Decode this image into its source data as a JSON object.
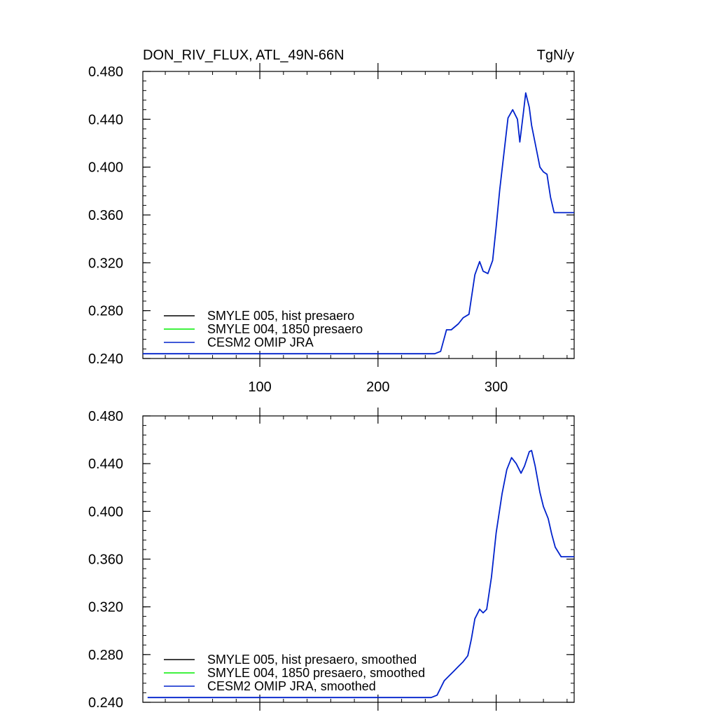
{
  "title_left": "DON_RIV_FLUX, ATL_49N-66N",
  "title_right": "TgN/y",
  "colors": {
    "hist": "#000000",
    "ctrl": "#00ee00",
    "omip": "#0022cc"
  },
  "chart_data": [
    {
      "type": "line",
      "panel": "top",
      "xlim": [
        1,
        366
      ],
      "ylim": [
        0.24,
        0.48
      ],
      "x_major_ticks": [
        100,
        200,
        300
      ],
      "x_tick_labels": [
        "100",
        "200",
        "300"
      ],
      "y_major_ticks": [
        0.24,
        0.28,
        0.32,
        0.36,
        0.4,
        0.44,
        0.48
      ],
      "y_tick_labels": [
        "0.240",
        "0.280",
        "0.320",
        "0.360",
        "0.400",
        "0.440",
        "0.480"
      ],
      "legend_position": "bottom-left",
      "series": [
        {
          "name": "SMYLE 005, hist presaero",
          "color": "#000000",
          "x": [],
          "y": []
        },
        {
          "name": "SMYLE 004, 1850 presaero",
          "color": "#00ee00",
          "x": [],
          "y": []
        },
        {
          "name": "CESM2 OMIP JRA",
          "color": "#0022cc",
          "x": [
            1,
            248,
            253,
            258,
            262,
            268,
            272,
            277,
            282,
            286,
            289,
            293,
            297,
            300,
            303,
            310,
            314,
            318,
            320,
            323,
            325,
            328,
            330,
            334,
            337,
            340,
            343,
            346,
            349,
            352,
            355,
            358,
            362,
            366
          ],
          "y": [
            0.244,
            0.244,
            0.246,
            0.264,
            0.264,
            0.269,
            0.274,
            0.277,
            0.31,
            0.321,
            0.313,
            0.311,
            0.322,
            0.35,
            0.381,
            0.441,
            0.448,
            0.44,
            0.421,
            0.445,
            0.462,
            0.45,
            0.435,
            0.415,
            0.4,
            0.396,
            0.394,
            0.375,
            0.362,
            0.362,
            0.362,
            0.362,
            0.362,
            0.362
          ]
        }
      ]
    },
    {
      "type": "line",
      "panel": "bottom",
      "xlim": [
        1,
        366
      ],
      "ylim": [
        0.24,
        0.48
      ],
      "x_major_ticks": [
        100,
        200,
        300
      ],
      "x_tick_labels": [],
      "y_major_ticks": [
        0.24,
        0.28,
        0.32,
        0.36,
        0.4,
        0.44,
        0.48
      ],
      "y_tick_labels": [
        "0.240",
        "0.280",
        "0.320",
        "0.360",
        "0.400",
        "0.440",
        "0.480"
      ],
      "legend_position": "bottom-left",
      "series": [
        {
          "name": "SMYLE 005, hist presaero, smoothed",
          "color": "#000000",
          "x": [],
          "y": []
        },
        {
          "name": "SMYLE 004, 1850 presaero, smoothed",
          "color": "#00ee00",
          "x": [],
          "y": []
        },
        {
          "name": "CESM2 OMIP JRA, smoothed",
          "color": "#0022cc",
          "x": [
            5,
            245,
            250,
            253,
            256,
            260,
            264,
            268,
            272,
            276,
            279,
            282,
            286,
            289,
            292,
            296,
            300,
            305,
            309,
            313,
            317,
            321,
            324,
            328,
            330,
            333,
            337,
            340,
            344,
            347,
            350,
            355,
            360,
            366
          ],
          "y": [
            0.244,
            0.244,
            0.246,
            0.252,
            0.258,
            0.262,
            0.266,
            0.27,
            0.274,
            0.279,
            0.293,
            0.31,
            0.318,
            0.315,
            0.318,
            0.345,
            0.382,
            0.415,
            0.435,
            0.445,
            0.44,
            0.432,
            0.438,
            0.45,
            0.451,
            0.438,
            0.416,
            0.404,
            0.394,
            0.381,
            0.37,
            0.362,
            0.362,
            0.362
          ]
        }
      ]
    }
  ]
}
